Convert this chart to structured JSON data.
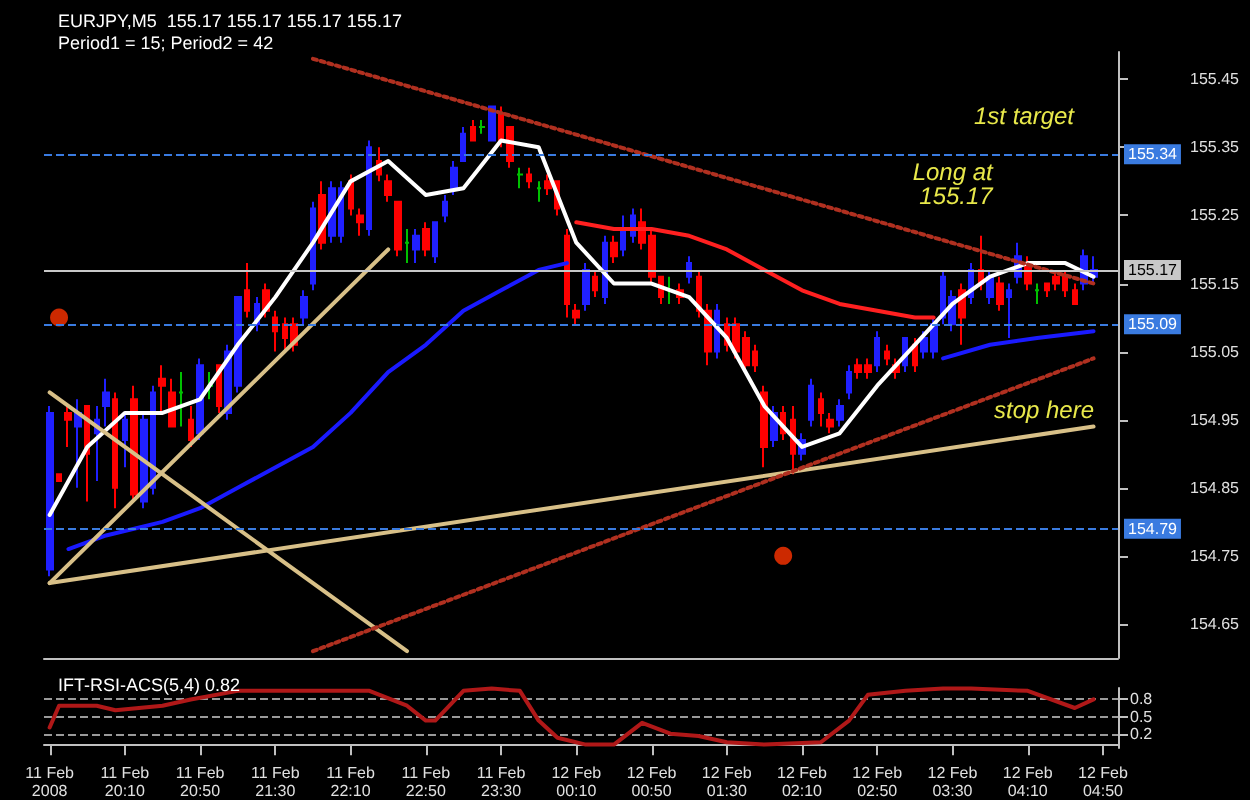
{
  "chart_data": [
    {
      "type": "candlestick",
      "title": "EURJPY,M5  155.17 155.17 155.17 155.17",
      "subtitle": "Period1 = 15; Period2 = 42",
      "x": [
        "2008-02-11T19:30",
        "2008-02-11T19:35",
        "2008-02-11T19:40",
        "2008-02-11T19:45",
        "2008-02-11T19:50",
        "2008-02-11T19:55",
        "2008-02-11T20:00",
        "2008-02-11T20:05",
        "2008-02-11T20:10",
        "2008-02-11T20:15",
        "2008-02-11T20:20",
        "2008-02-11T20:25",
        "2008-02-11T20:30",
        "2008-02-11T20:35",
        "2008-02-11T20:40",
        "2008-02-11T20:45",
        "2008-02-11T20:50",
        "2008-02-11T20:55",
        "2008-02-11T21:00",
        "2008-02-11T21:05",
        "2008-02-11T21:10",
        "2008-02-11T21:15",
        "2008-02-11T21:20",
        "2008-02-11T21:25",
        "2008-02-11T21:30",
        "2008-02-11T21:35",
        "2008-02-11T21:40",
        "2008-02-11T21:45",
        "2008-02-11T21:50",
        "2008-02-11T21:55",
        "2008-02-11T22:00",
        "2008-02-11T22:05",
        "2008-02-11T22:10",
        "2008-02-11T22:15",
        "2008-02-11T22:20",
        "2008-02-11T22:25",
        "2008-02-11T22:30",
        "2008-02-11T22:35",
        "2008-02-11T22:40",
        "2008-02-11T22:45",
        "2008-02-11T22:50",
        "2008-02-11T22:55",
        "2008-02-11T23:00",
        "2008-02-11T23:05",
        "2008-02-11T23:10",
        "2008-02-11T23:15",
        "2008-02-11T23:20",
        "2008-02-11T23:25",
        "2008-02-11T23:30",
        "2008-02-11T23:35",
        "2008-02-11T23:40",
        "2008-02-11T23:45",
        "2008-02-11T23:50",
        "2008-02-11T23:55",
        "2008-02-12T00:00",
        "2008-02-12T00:05",
        "2008-02-12T00:10",
        "2008-02-12T00:15",
        "2008-02-12T00:20",
        "2008-02-12T00:25",
        "2008-02-12T00:30",
        "2008-02-12T00:35",
        "2008-02-12T00:40",
        "2008-02-12T00:45",
        "2008-02-12T00:50",
        "2008-02-12T00:55",
        "2008-02-12T01:00",
        "2008-02-12T01:05",
        "2008-02-12T01:10",
        "2008-02-12T01:15",
        "2008-02-12T01:20",
        "2008-02-12T01:25",
        "2008-02-12T01:30",
        "2008-02-12T01:35",
        "2008-02-12T01:40",
        "2008-02-12T01:45",
        "2008-02-12T01:50",
        "2008-02-12T01:55",
        "2008-02-12T02:00",
        "2008-02-12T02:05",
        "2008-02-12T02:10",
        "2008-02-12T02:15",
        "2008-02-12T02:20",
        "2008-02-12T02:25",
        "2008-02-12T02:30",
        "2008-02-12T02:35",
        "2008-02-12T02:40",
        "2008-02-12T02:45",
        "2008-02-12T02:50",
        "2008-02-12T02:55",
        "2008-02-12T03:00",
        "2008-02-12T03:05",
        "2008-02-12T03:10",
        "2008-02-12T03:15",
        "2008-02-12T03:20",
        "2008-02-12T03:25",
        "2008-02-12T03:30",
        "2008-02-12T03:35",
        "2008-02-12T03:40",
        "2008-02-12T03:45",
        "2008-02-12T03:50",
        "2008-02-12T03:55",
        "2008-02-12T04:00",
        "2008-02-12T04:05",
        "2008-02-12T04:10",
        "2008-02-12T04:15",
        "2008-02-12T04:20",
        "2008-02-12T04:25",
        "2008-02-12T04:30",
        "2008-02-12T04:35",
        "2008-02-12T04:40",
        "2008-02-12T04:45"
      ],
      "ohlc": [
        [
          154.73,
          154.97,
          154.72,
          154.96
        ],
        [
          154.87,
          154.87,
          154.86,
          154.86
        ],
        [
          154.96,
          154.97,
          154.91,
          154.95
        ],
        [
          154.94,
          154.98,
          154.85,
          154.96
        ],
        [
          154.97,
          154.97,
          154.83,
          154.9
        ],
        [
          154.93,
          154.97,
          154.86,
          154.95
        ],
        [
          154.97,
          155.01,
          154.94,
          154.99
        ],
        [
          154.98,
          154.99,
          154.82,
          154.85
        ],
        [
          154.92,
          154.96,
          154.88,
          154.95
        ],
        [
          154.98,
          155.0,
          154.83,
          154.84
        ],
        [
          154.83,
          154.96,
          154.82,
          154.95
        ],
        [
          154.85,
          155.0,
          154.84,
          154.99
        ],
        [
          155.01,
          155.03,
          154.96,
          155.0
        ],
        [
          154.99,
          155.01,
          154.94,
          154.94
        ],
        [
          154.99,
          155.02,
          154.94,
          154.99
        ],
        [
          154.95,
          154.97,
          154.91,
          154.92
        ],
        [
          154.93,
          155.04,
          154.92,
          155.03
        ],
        [
          155.0,
          155.02,
          154.98,
          155.0
        ],
        [
          155.03,
          155.03,
          154.96,
          154.97
        ],
        [
          154.96,
          155.06,
          154.95,
          155.05
        ],
        [
          155.0,
          155.13,
          154.99,
          155.13
        ],
        [
          155.14,
          155.18,
          155.1,
          155.11
        ],
        [
          155.09,
          155.13,
          155.08,
          155.12
        ],
        [
          155.14,
          155.15,
          155.1,
          155.11
        ],
        [
          155.1,
          155.11,
          155.05,
          155.08
        ],
        [
          155.09,
          155.1,
          155.05,
          155.07
        ],
        [
          155.09,
          155.1,
          155.05,
          155.06
        ],
        [
          155.1,
          155.14,
          155.09,
          155.13
        ],
        [
          155.15,
          155.27,
          155.14,
          155.26
        ],
        [
          155.28,
          155.3,
          155.2,
          155.21
        ],
        [
          155.22,
          155.3,
          155.21,
          155.29
        ],
        [
          155.22,
          155.3,
          155.21,
          155.29
        ],
        [
          155.3,
          155.31,
          155.25,
          155.26
        ],
        [
          155.25,
          155.26,
          155.22,
          155.24
        ],
        [
          155.23,
          155.36,
          155.22,
          155.35
        ],
        [
          155.33,
          155.35,
          155.3,
          155.31
        ],
        [
          155.3,
          155.31,
          155.27,
          155.28
        ],
        [
          155.27,
          155.27,
          155.19,
          155.2
        ],
        [
          155.21,
          155.23,
          155.18,
          155.21
        ],
        [
          155.2,
          155.23,
          155.18,
          155.22
        ],
        [
          155.23,
          155.24,
          155.19,
          155.2
        ],
        [
          155.19,
          155.24,
          155.18,
          155.24
        ],
        [
          155.25,
          155.28,
          155.24,
          155.27
        ],
        [
          155.29,
          155.33,
          155.28,
          155.32
        ],
        [
          155.33,
          155.38,
          155.33,
          155.37
        ],
        [
          155.38,
          155.39,
          155.36,
          155.36
        ],
        [
          155.38,
          155.39,
          155.37,
          155.38
        ],
        [
          155.36,
          155.41,
          155.36,
          155.41
        ],
        [
          155.4,
          155.41,
          155.35,
          155.36
        ],
        [
          155.38,
          155.38,
          155.32,
          155.33
        ],
        [
          155.31,
          155.32,
          155.29,
          155.31
        ],
        [
          155.31,
          155.32,
          155.29,
          155.3
        ],
        [
          155.29,
          155.3,
          155.27,
          155.29
        ],
        [
          155.3,
          155.31,
          155.28,
          155.29
        ],
        [
          155.3,
          155.3,
          155.25,
          155.26
        ],
        [
          155.22,
          155.23,
          155.1,
          155.12
        ],
        [
          155.11,
          155.12,
          155.09,
          155.1
        ],
        [
          155.12,
          155.18,
          155.11,
          155.17
        ],
        [
          155.16,
          155.17,
          155.13,
          155.14
        ],
        [
          155.13,
          155.22,
          155.12,
          155.21
        ],
        [
          155.21,
          155.22,
          155.18,
          155.19
        ],
        [
          155.2,
          155.25,
          155.19,
          155.23
        ],
        [
          155.22,
          155.26,
          155.21,
          155.25
        ],
        [
          155.24,
          155.26,
          155.2,
          155.21
        ],
        [
          155.22,
          155.23,
          155.15,
          155.16
        ],
        [
          155.16,
          155.16,
          155.12,
          155.13
        ],
        [
          155.14,
          155.16,
          155.12,
          155.14
        ],
        [
          155.14,
          155.15,
          155.12,
          155.13
        ],
        [
          155.16,
          155.19,
          155.15,
          155.18
        ],
        [
          155.16,
          155.17,
          155.1,
          155.11
        ],
        [
          155.11,
          155.12,
          155.03,
          155.05
        ],
        [
          155.05,
          155.12,
          155.04,
          155.11
        ],
        [
          155.09,
          155.1,
          155.05,
          155.06
        ],
        [
          155.09,
          155.1,
          155.04,
          155.05
        ],
        [
          155.07,
          155.08,
          155.02,
          155.03
        ],
        [
          155.05,
          155.06,
          155.02,
          155.03
        ],
        [
          154.99,
          155.0,
          154.88,
          154.91
        ],
        [
          154.92,
          154.97,
          154.91,
          154.96
        ],
        [
          154.96,
          154.97,
          154.92,
          154.93
        ],
        [
          154.95,
          154.97,
          154.87,
          154.9
        ],
        [
          154.9,
          154.93,
          154.89,
          154.92
        ],
        [
          154.95,
          155.01,
          154.94,
          155.0
        ],
        [
          154.98,
          154.99,
          154.94,
          154.96
        ],
        [
          154.95,
          154.96,
          154.93,
          154.94
        ],
        [
          154.95,
          154.98,
          154.94,
          154.97
        ],
        [
          154.99,
          155.03,
          154.98,
          155.02
        ],
        [
          155.03,
          155.04,
          155.01,
          155.02
        ],
        [
          155.03,
          155.04,
          155.01,
          155.02
        ],
        [
          155.03,
          155.08,
          155.02,
          155.07
        ],
        [
          155.05,
          155.06,
          155.03,
          155.04
        ],
        [
          155.03,
          155.04,
          155.01,
          155.02
        ],
        [
          155.03,
          155.07,
          155.02,
          155.07
        ],
        [
          155.06,
          155.07,
          155.02,
          155.03
        ],
        [
          155.05,
          155.08,
          155.04,
          155.07
        ],
        [
          155.05,
          155.1,
          155.04,
          155.09
        ],
        [
          155.1,
          155.17,
          155.09,
          155.16
        ],
        [
          155.09,
          155.14,
          155.08,
          155.13
        ],
        [
          155.14,
          155.15,
          155.06,
          155.1
        ],
        [
          155.13,
          155.18,
          155.12,
          155.17
        ],
        [
          155.17,
          155.22,
          155.14,
          155.15
        ],
        [
          155.13,
          155.17,
          155.12,
          155.16
        ],
        [
          155.15,
          155.16,
          155.11,
          155.12
        ],
        [
          155.13,
          155.15,
          155.07,
          155.14
        ],
        [
          155.16,
          155.21,
          155.15,
          155.19
        ],
        [
          155.18,
          155.19,
          155.14,
          155.15
        ],
        [
          155.14,
          155.15,
          155.12,
          155.14
        ],
        [
          155.15,
          155.15,
          155.13,
          155.14
        ],
        [
          155.16,
          155.17,
          155.14,
          155.15
        ],
        [
          155.16,
          155.17,
          155.13,
          155.14
        ],
        [
          155.14,
          155.15,
          155.12,
          155.12
        ],
        [
          155.15,
          155.2,
          155.14,
          155.19
        ],
        [
          155.16,
          155.19,
          155.15,
          155.17
        ]
      ],
      "colors": [
        "#2020ff",
        "#ff0000",
        "#ff0000",
        "#2020ff",
        "#ff0000",
        "#2020ff",
        "#2020ff",
        "#ff0000",
        "#2020ff",
        "#ff0000",
        "#2020ff",
        "#2020ff",
        "#ff0000",
        "#ff0000",
        "#00c000",
        "#ff0000",
        "#2020ff",
        "#00c000",
        "#ff0000",
        "#2020ff",
        "#2020ff",
        "#ff0000",
        "#2020ff",
        "#ff0000",
        "#ff0000",
        "#ff0000",
        "#ff0000",
        "#2020ff",
        "#2020ff",
        "#ff0000",
        "#2020ff",
        "#2020ff",
        "#ff0000",
        "#ff0000",
        "#2020ff",
        "#ff0000",
        "#ff0000",
        "#ff0000",
        "#00c000",
        "#2020ff",
        "#ff0000",
        "#2020ff",
        "#2020ff",
        "#2020ff",
        "#2020ff",
        "#ff0000",
        "#00c000",
        "#2020ff",
        "#ff0000",
        "#ff0000",
        "#00c000",
        "#ff0000",
        "#00c000",
        "#ff0000",
        "#ff0000",
        "#ff0000",
        "#ff0000",
        "#2020ff",
        "#ff0000",
        "#2020ff",
        "#ff0000",
        "#2020ff",
        "#2020ff",
        "#ff0000",
        "#ff0000",
        "#ff0000",
        "#00c000",
        "#ff0000",
        "#2020ff",
        "#ff0000",
        "#ff0000",
        "#2020ff",
        "#ff0000",
        "#ff0000",
        "#ff0000",
        "#ff0000",
        "#ff0000",
        "#2020ff",
        "#ff0000",
        "#ff0000",
        "#2020ff",
        "#2020ff",
        "#ff0000",
        "#ff0000",
        "#2020ff",
        "#2020ff",
        "#ff0000",
        "#ff0000",
        "#2020ff",
        "#ff0000",
        "#ff0000",
        "#2020ff",
        "#ff0000",
        "#2020ff",
        "#2020ff",
        "#2020ff",
        "#2020ff",
        "#ff0000",
        "#2020ff",
        "#ff0000",
        "#2020ff",
        "#ff0000",
        "#2020ff",
        "#2020ff",
        "#ff0000",
        "#00c000",
        "#ff0000",
        "#ff0000",
        "#ff0000",
        "#ff0000",
        "#2020ff",
        "#2020ff"
      ],
      "series": [
        {
          "type": "line",
          "color": "#ffffff",
          "line_style": "solid",
          "marker": "none",
          "x": [
            "2008-02-11T19:30",
            "2008-02-11T19:50",
            "2008-02-11T20:10",
            "2008-02-11T20:30",
            "2008-02-11T20:50",
            "2008-02-11T21:10",
            "2008-02-11T21:30",
            "2008-02-11T21:50",
            "2008-02-11T22:10",
            "2008-02-11T22:30",
            "2008-02-11T22:50",
            "2008-02-11T23:10",
            "2008-02-11T23:30",
            "2008-02-11T23:50",
            "2008-02-12T00:10",
            "2008-02-12T00:30",
            "2008-02-12T00:50",
            "2008-02-12T01:10",
            "2008-02-12T01:30",
            "2008-02-12T01:50",
            "2008-02-12T02:10",
            "2008-02-12T02:30",
            "2008-02-12T02:50",
            "2008-02-12T03:10",
            "2008-02-12T03:30",
            "2008-02-12T03:50",
            "2008-02-12T04:10",
            "2008-02-12T04:30",
            "2008-02-12T04:45"
          ],
          "values": [
            154.81,
            154.91,
            154.96,
            154.96,
            154.98,
            155.06,
            155.13,
            155.21,
            155.3,
            155.33,
            155.28,
            155.29,
            155.36,
            155.35,
            155.21,
            155.15,
            155.15,
            155.13,
            155.07,
            154.97,
            154.91,
            154.93,
            155.0,
            155.06,
            155.12,
            155.16,
            155.18,
            155.18,
            155.16
          ]
        },
        {
          "type": "line",
          "color": "#ff2020",
          "line_style": "solid",
          "marker": "none",
          "x": [
            "2008-02-12T00:10",
            "2008-02-12T00:30",
            "2008-02-12T00:50",
            "2008-02-12T01:10",
            "2008-02-12T01:30",
            "2008-02-12T01:50",
            "2008-02-12T02:10",
            "2008-02-12T02:30",
            "2008-02-12T02:50",
            "2008-02-12T03:10",
            "2008-02-12T03:20"
          ],
          "values": [
            155.24,
            155.23,
            155.23,
            155.22,
            155.2,
            155.17,
            155.14,
            155.12,
            155.11,
            155.1,
            155.1
          ]
        },
        {
          "type": "line",
          "color": "#1a1aff",
          "line_style": "solid",
          "marker": "none",
          "x": [
            "2008-02-11T19:40",
            "2008-02-11T20:00",
            "2008-02-11T20:30",
            "2008-02-11T20:50",
            "2008-02-11T21:10",
            "2008-02-11T21:50",
            "2008-02-11T22:10",
            "2008-02-11T22:30",
            "2008-02-11T22:50",
            "2008-02-11T23:10",
            "2008-02-11T23:30",
            "2008-02-11T23:50",
            "2008-02-12T00:05",
            "2008-02-12T00:10",
            "2008-02-12T03:25",
            "2008-02-12T03:50",
            "2008-02-12T04:15",
            "2008-02-12T04:45"
          ],
          "values": [
            154.76,
            154.78,
            154.8,
            154.82,
            154.85,
            154.91,
            154.96,
            155.02,
            155.06,
            155.11,
            155.14,
            155.17,
            155.18,
            null,
            155.04,
            155.06,
            155.07,
            155.08
          ]
        },
        {
          "type": "line",
          "color": "#d8c088",
          "line_style": "solid",
          "marker": "none",
          "x": [
            "2008-02-11T19:30",
            "2008-02-12T04:45"
          ],
          "values": [
            154.71,
            154.94
          ]
        },
        {
          "type": "line",
          "color": "#d8c088",
          "line_style": "solid",
          "marker": "none",
          "x": [
            "2008-02-11T19:30",
            "2008-02-11T22:30"
          ],
          "values": [
            154.71,
            155.2
          ]
        },
        {
          "type": "line",
          "color": "#d8c088",
          "line_style": "solid",
          "marker": "none",
          "x": [
            "2008-02-11T19:30",
            "2008-02-11T22:40"
          ],
          "values": [
            154.99,
            154.61
          ]
        },
        {
          "type": "line",
          "color": "#b03020",
          "line_style": "dotted",
          "marker": "none",
          "x": [
            "2008-02-11T21:50",
            "2008-02-12T04:45"
          ],
          "values": [
            155.48,
            155.15
          ]
        },
        {
          "type": "line",
          "color": "#b03020",
          "line_style": "dotted",
          "marker": "none",
          "x": [
            "2008-02-11T21:50",
            "2008-02-12T04:45"
          ],
          "values": [
            154.61,
            155.04
          ]
        },
        {
          "type": "scatter",
          "color": "#ff3300",
          "marker": "circle",
          "x": [
            "2008-02-11T19:35",
            "2008-02-12T02:00"
          ],
          "values": [
            155.1,
            154.75
          ]
        }
      ],
      "xlim": [
        "2008-02-11T19:27",
        "2008-02-12T04:58"
      ],
      "ylim": [
        154.6,
        155.49
      ],
      "yticks": [
        154.65,
        154.75,
        154.85,
        154.95,
        155.05,
        155.15,
        155.25,
        155.35,
        155.45
      ],
      "ref_lines": [
        {
          "axis": "y",
          "value": 155.34,
          "label": "155.34",
          "color": "#3a7be0",
          "line_style": "dashed"
        },
        {
          "axis": "y",
          "value": 155.17,
          "label": "155.17",
          "color": "#c8c8c8",
          "line_style": "solid"
        },
        {
          "axis": "y",
          "value": 155.09,
          "label": "155.09",
          "color": "#3a7be0",
          "line_style": "dashed"
        },
        {
          "axis": "y",
          "value": 154.79,
          "label": "154.79",
          "color": "#3a7be0",
          "line_style": "dashed"
        }
      ],
      "annotations": [
        "1st target",
        "Long at 155.17",
        "stop here"
      ],
      "tick_labels": "y"
    },
    {
      "type": "line",
      "title": "IFT-RSI-ACS(5,4) 0.82",
      "series": [
        {
          "color": "#b01818",
          "line_style": "solid",
          "marker": "none",
          "x": [
            "2008-02-11T19:30",
            "2008-02-11T19:35",
            "2008-02-11T19:55",
            "2008-02-11T20:05",
            "2008-02-11T20:30",
            "2008-02-11T20:45",
            "2008-02-11T21:10",
            "2008-02-11T21:45",
            "2008-02-11T22:20",
            "2008-02-11T22:40",
            "2008-02-11T22:50",
            "2008-02-11T22:55",
            "2008-02-11T23:10",
            "2008-02-11T23:25",
            "2008-02-11T23:40",
            "2008-02-11T23:50",
            "2008-02-12T00:00",
            "2008-02-12T00:15",
            "2008-02-12T00:30",
            "2008-02-12T00:45",
            "2008-02-12T01:00",
            "2008-02-12T01:15",
            "2008-02-12T01:30",
            "2008-02-12T01:50",
            "2008-02-12T02:20",
            "2008-02-12T02:35",
            "2008-02-12T02:45",
            "2008-02-12T03:05",
            "2008-02-12T03:25",
            "2008-02-12T03:40",
            "2008-02-12T04:10",
            "2008-02-12T04:35",
            "2008-02-12T04:45"
          ],
          "values": [
            0.31,
            0.69,
            0.69,
            0.61,
            0.69,
            0.8,
            0.95,
            0.95,
            0.95,
            0.69,
            0.43,
            0.43,
            0.95,
            0.99,
            0.95,
            0.43,
            0.13,
            0.01,
            0.01,
            0.39,
            0.2,
            0.16,
            0.05,
            0.01,
            0.05,
            0.43,
            0.88,
            0.95,
            0.99,
            0.99,
            0.95,
            0.65,
            0.8
          ]
        }
      ],
      "xlim": [
        "2008-02-11T19:27",
        "2008-02-12T04:58"
      ],
      "ylim": [
        -0.05,
        1
      ],
      "yticks": [
        0.2,
        0.5,
        0.8
      ],
      "xticks": [
        {
          "value": "2008-02-11T19:30",
          "label": "11 Feb 2008"
        },
        {
          "value": "2008-02-11T20:10",
          "label": "11 Feb 20:10"
        },
        {
          "value": "2008-02-11T20:50",
          "label": "11 Feb 20:50"
        },
        {
          "value": "2008-02-11T21:30",
          "label": "11 Feb 21:30"
        },
        {
          "value": "2008-02-11T22:10",
          "label": "11 Feb 22:10"
        },
        {
          "value": "2008-02-11T22:50",
          "label": "11 Feb 22:50"
        },
        {
          "value": "2008-02-11T23:30",
          "label": "11 Feb 23:30"
        },
        {
          "value": "2008-02-12T00:10",
          "label": "12 Feb 00:10"
        },
        {
          "value": "2008-02-12T00:50",
          "label": "12 Feb 00:50"
        },
        {
          "value": "2008-02-12T01:30",
          "label": "12 Feb 01:30"
        },
        {
          "value": "2008-02-12T02:10",
          "label": "12 Feb 02:10"
        },
        {
          "value": "2008-02-12T02:50",
          "label": "12 Feb 02:50"
        },
        {
          "value": "2008-02-12T03:30",
          "label": "12 Feb 03:30"
        },
        {
          "value": "2008-02-12T04:10",
          "label": "12 Feb 04:10"
        },
        {
          "value": "2008-02-12T04:50",
          "label": "12 Feb 04:50"
        }
      ],
      "grid": "y"
    }
  ]
}
